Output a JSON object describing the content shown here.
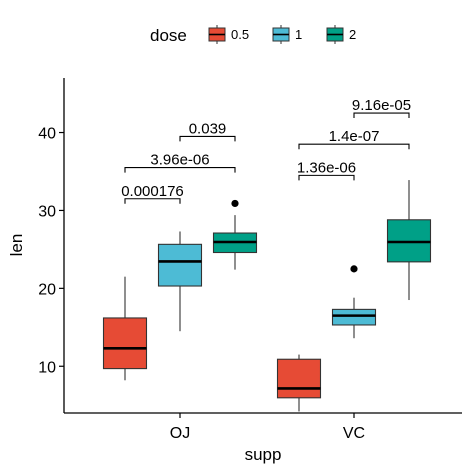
{
  "chart_data": {
    "type": "boxplot",
    "xlabel": "supp",
    "ylabel": "len",
    "ylim": [
      4,
      47
    ],
    "yticks": [
      10,
      20,
      30,
      40
    ],
    "categories": [
      "OJ",
      "VC"
    ],
    "legend": {
      "title": "dose",
      "position": "top"
    },
    "series": [
      {
        "name": "0.5",
        "color": "#E64B35",
        "boxes": [
          {
            "category": "OJ",
            "min": 8.2,
            "q1": 9.7,
            "median": 12.3,
            "q3": 16.2,
            "max": 21.5,
            "outliers": []
          },
          {
            "category": "VC",
            "min": 4.2,
            "q1": 5.95,
            "median": 7.15,
            "q3": 10.9,
            "max": 11.5,
            "outliers": []
          }
        ]
      },
      {
        "name": "1",
        "color": "#4DBBD5",
        "boxes": [
          {
            "category": "OJ",
            "min": 14.5,
            "q1": 20.3,
            "median": 23.45,
            "q3": 25.65,
            "max": 27.3,
            "outliers": []
          },
          {
            "category": "VC",
            "min": 13.6,
            "q1": 15.3,
            "median": 16.5,
            "q3": 17.3,
            "max": 18.8,
            "outliers": [
              22.5
            ]
          }
        ]
      },
      {
        "name": "2",
        "color": "#00A087",
        "boxes": [
          {
            "category": "OJ",
            "min": 22.4,
            "q1": 24.6,
            "median": 25.95,
            "q3": 27.1,
            "max": 29.4,
            "outliers": [
              30.9
            ]
          },
          {
            "category": "VC",
            "min": 18.5,
            "q1": 23.4,
            "median": 25.95,
            "q3": 28.8,
            "max": 33.9,
            "outliers": []
          }
        ]
      }
    ],
    "comparisons": [
      {
        "category": "OJ",
        "groups": [
          "0.5",
          "1"
        ],
        "y": 31.5,
        "label": "0.000176"
      },
      {
        "category": "OJ",
        "groups": [
          "0.5",
          "2"
        ],
        "y": 35.5,
        "label": "3.96e-06"
      },
      {
        "category": "OJ",
        "groups": [
          "1",
          "2"
        ],
        "y": 39.5,
        "label": "0.039"
      },
      {
        "category": "VC",
        "groups": [
          "0.5",
          "1"
        ],
        "y": 34.5,
        "label": "1.36e-06"
      },
      {
        "category": "VC",
        "groups": [
          "0.5",
          "2"
        ],
        "y": 38.5,
        "label": "1.4e-07"
      },
      {
        "category": "VC",
        "groups": [
          "1",
          "2"
        ],
        "y": 42.5,
        "label": "9.16e-05"
      }
    ]
  }
}
